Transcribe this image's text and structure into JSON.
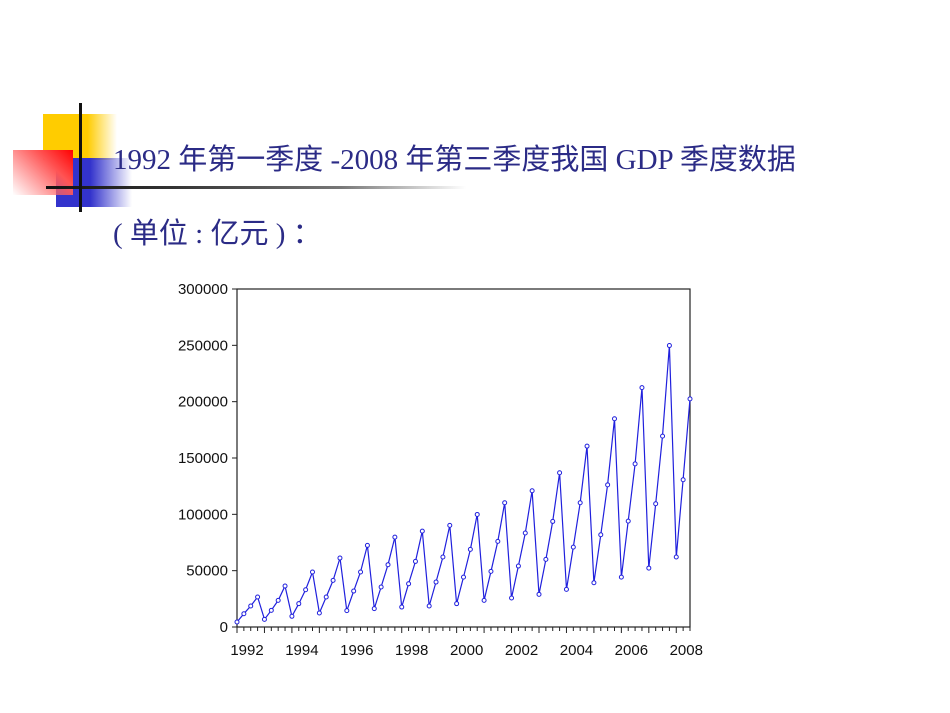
{
  "slide": {
    "title_line1": "1992 年第一季度 -2008 年第三季度我国 GDP 季度数据",
    "title_line2": "( 单位 : 亿元 ) ："
  },
  "colors": {
    "title": "#2b2b86",
    "series": "#2020dd",
    "deco_yellow": "#ffcc00",
    "deco_red": "#ff0000",
    "deco_blue": "#3333cc"
  },
  "chart_data": {
    "type": "line",
    "frequency": "quarterly",
    "start": "1992Q1",
    "end": "2008Q3",
    "markers": "circle",
    "ylim": [
      0,
      300000
    ],
    "yticks": [
      "0",
      "50000",
      "100000",
      "150000",
      "200000",
      "250000",
      "300000"
    ],
    "xticks": [
      "1992",
      "1994",
      "1996",
      "1998",
      "2000",
      "2002",
      "2004",
      "2006",
      "2008"
    ],
    "grid": false,
    "series": [
      {
        "values": [
          4400,
          11800,
          18600,
          26600,
          6800,
          14800,
          23600,
          36400,
          9500,
          20700,
          33100,
          48800,
          12400,
          26600,
          41400,
          61200,
          14500,
          31900,
          48800,
          72400,
          16300,
          35500,
          55300,
          79800,
          17700,
          38400,
          58200,
          85100,
          18600,
          39900,
          62100,
          90200,
          20700,
          44300,
          68900,
          99900,
          23600,
          49400,
          76000,
          110300,
          25700,
          54100,
          83400,
          120900,
          29000,
          60000,
          93700,
          136900,
          33400,
          70900,
          110300,
          160500,
          39300,
          81900,
          126200,
          184800,
          44300,
          94000,
          144800,
          212500,
          52300,
          109400,
          169400,
          249800,
          62100,
          130700,
          202500
        ]
      }
    ]
  }
}
